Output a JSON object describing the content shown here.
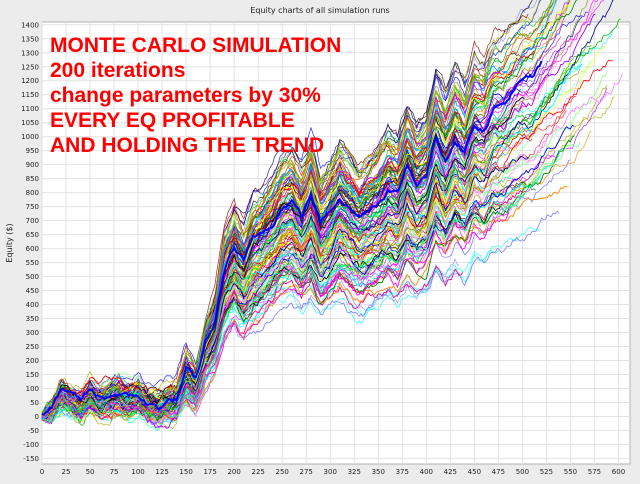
{
  "chart_data": {
    "type": "line",
    "title": "Equity charts of all simulation runs",
    "ylabel": "Equity ($)",
    "xlabel": "",
    "xlim": [
      0,
      612
    ],
    "ylim": [
      -170,
      1410
    ],
    "x_ticks": [
      0,
      25,
      50,
      75,
      100,
      125,
      150,
      175,
      200,
      225,
      250,
      275,
      300,
      325,
      350,
      375,
      400,
      425,
      450,
      475,
      500,
      525,
      550,
      575,
      600
    ],
    "y_ticks": [
      -150,
      -100,
      -50,
      0,
      50,
      100,
      150,
      200,
      250,
      300,
      350,
      400,
      450,
      500,
      550,
      600,
      650,
      700,
      750,
      800,
      850,
      900,
      950,
      1000,
      1050,
      1100,
      1150,
      1200,
      1250,
      1300,
      1350,
      1400
    ],
    "grid": true,
    "annotation_lines": [
      "MONTE CARLO SIMULATION",
      "200 iterations",
      "change parameters by 30%",
      "EVERY EQ PROFITABLE",
      "AND HOLDING THE TREND"
    ],
    "annotation_color": "#ff0000",
    "simulation_runs": 200,
    "series_colors": [
      "#ff0000",
      "#00c000",
      "#0000ff",
      "#ffff00",
      "#ff00ff",
      "#00ffff",
      "#ff8800",
      "#008800",
      "#000088",
      "#880000",
      "#888800",
      "#ff88ff",
      "#88ff88",
      "#8888ff",
      "#00aaff",
      "#aa00ff",
      "#ff0088",
      "#000000",
      "#00ff88",
      "#aaaa00"
    ],
    "highlight_color": "#0000ff",
    "representative_series": {
      "x": [
        0,
        10,
        20,
        30,
        40,
        50,
        60,
        70,
        80,
        90,
        100,
        110,
        120,
        130,
        140,
        150,
        160,
        170,
        180,
        190,
        200,
        210,
        220,
        230,
        240,
        250,
        260,
        270,
        280,
        290,
        300,
        310,
        320,
        330,
        340,
        350,
        360,
        370,
        380,
        390,
        400,
        410,
        420,
        430,
        440,
        450,
        460,
        470,
        480,
        490,
        500,
        510,
        520
      ],
      "values": [
        0,
        20,
        90,
        60,
        40,
        80,
        55,
        70,
        85,
        60,
        75,
        40,
        30,
        50,
        60,
        160,
        110,
        250,
        330,
        520,
        600,
        540,
        620,
        650,
        700,
        760,
        780,
        720,
        800,
        690,
        740,
        800,
        760,
        720,
        750,
        780,
        830,
        800,
        900,
        840,
        870,
        1000,
        930,
        1010,
        960,
        1060,
        1040,
        1110,
        1120,
        1160,
        1190,
        1200,
        1250
      ]
    }
  }
}
